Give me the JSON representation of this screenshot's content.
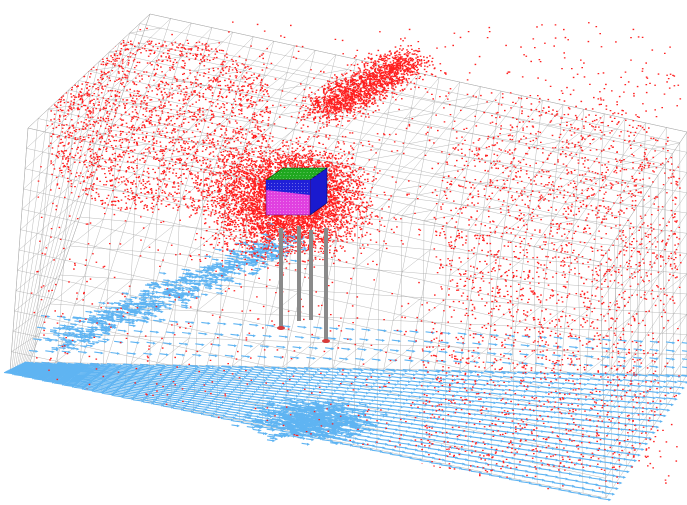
{
  "viewport": {
    "background": "#ffffff",
    "icon": "fem-mesh-3d-icon"
  },
  "scene": {
    "mesh_color": "#9a9a9a",
    "point_cloud_color": "#ff1f1f",
    "base_arrow_color": "#5fb4f2",
    "block_top_color": "#1fa81f",
    "block_front_color": "#e040e0",
    "block_side_color": "#1a1acf",
    "pile_color": "#8a8a8a"
  }
}
